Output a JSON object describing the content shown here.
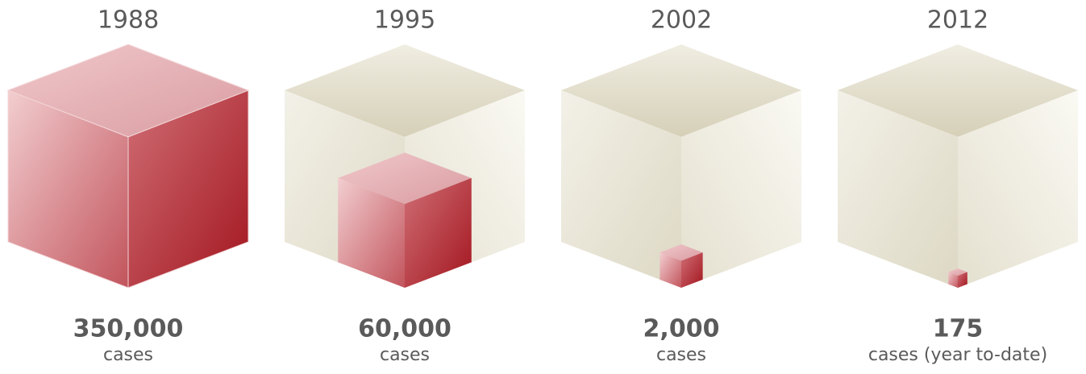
{
  "chart_data": {
    "type": "cube",
    "categories": [
      "1988",
      "1995",
      "2002",
      "2012"
    ],
    "values": [
      350000,
      60000,
      2000,
      175
    ],
    "value_labels": [
      "350,000",
      "60,000",
      "2,000",
      "175"
    ],
    "units": [
      "cases",
      "cases",
      "cases",
      "cases (year to-date)"
    ],
    "color": "#b3343c"
  }
}
